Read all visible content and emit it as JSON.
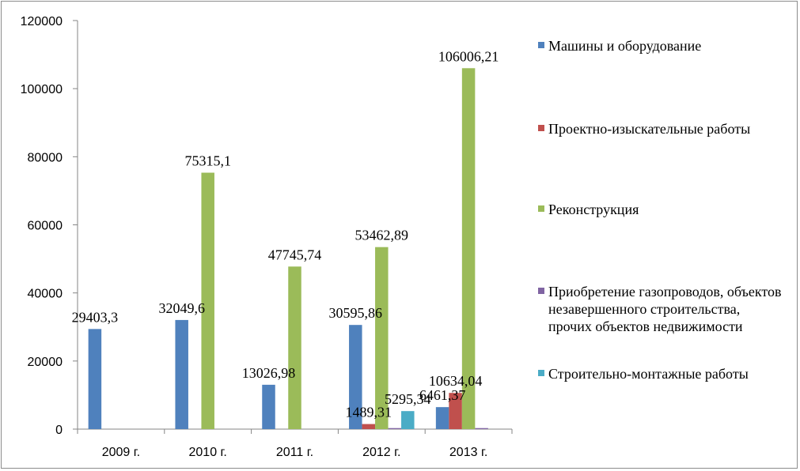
{
  "chart_data": {
    "type": "bar",
    "categories": [
      "2009 г.",
      "2010 г.",
      "2011 г.",
      "2012 г.",
      "2013 г."
    ],
    "ylim": [
      0,
      120000
    ],
    "yticks": [
      "0",
      "20000",
      "40000",
      "60000",
      "80000",
      "100000",
      "120000"
    ],
    "ytick_values": [
      0,
      20000,
      40000,
      60000,
      80000,
      100000,
      120000
    ],
    "grid": false,
    "legend_position": "right",
    "series": [
      {
        "name": "Машины и оборудование",
        "color": "#4f81bd",
        "values": [
          29403.3,
          32049.6,
          13026.98,
          30595.86,
          6461.37
        ],
        "labels": [
          "29403,3",
          "32049,6",
          "13026,98",
          "30595,86",
          "6461,37"
        ]
      },
      {
        "name": "Проектно-изыскательные работы",
        "color": "#c0504d",
        "values": [
          null,
          null,
          null,
          1489.31,
          10634.04
        ],
        "labels": [
          "",
          "",
          "",
          "1489,31",
          "10634,04"
        ]
      },
      {
        "name": "Реконструкция",
        "color": "#9bbb59",
        "values": [
          null,
          75315.1,
          47745.74,
          53462.89,
          106006.21
        ],
        "labels": [
          "",
          "75315,1",
          "47745,74",
          "53462,89",
          "106006,21"
        ]
      },
      {
        "name": "Приобретение газопроводов, объектов незавершенного строительства, прочих объектов недвижимости",
        "color": "#8064a2",
        "values": [
          null,
          null,
          null,
          300,
          300
        ],
        "labels": [
          "",
          "",
          "",
          "",
          ""
        ]
      },
      {
        "name": "Строительно-монтажные работы",
        "color": "#4bacc6",
        "values": [
          null,
          null,
          null,
          5295.34,
          null
        ],
        "labels": [
          "",
          "",
          "",
          "5295,34",
          ""
        ]
      }
    ]
  }
}
